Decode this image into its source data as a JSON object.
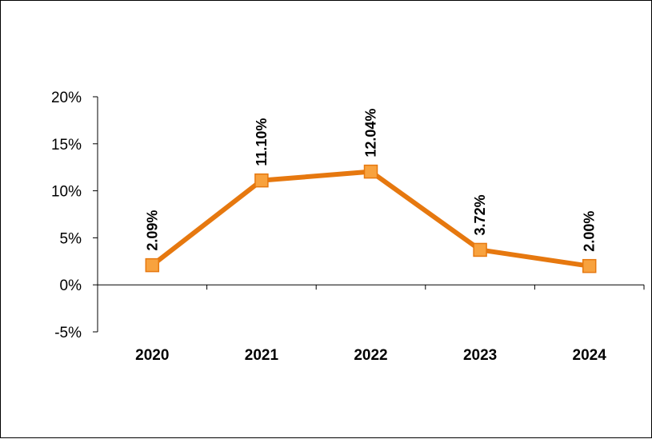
{
  "chart_data": {
    "type": "line",
    "categories": [
      "2020",
      "2021",
      "2022",
      "2023",
      "2024"
    ],
    "series": [
      {
        "values": [
          2.09,
          11.1,
          12.04,
          3.72,
          2.0
        ]
      }
    ],
    "data_labels": [
      "2.09%",
      "11.10%",
      "12.04%",
      "3.72%",
      "2.00%"
    ],
    "y_ticks": [
      -5,
      0,
      5,
      10,
      15,
      20
    ],
    "y_tick_labels": [
      "-5%",
      "0%",
      "5%",
      "10%",
      "15%",
      "20%"
    ],
    "ylim": [
      -5,
      20
    ],
    "grid": false,
    "legend": "none",
    "colors": {
      "line": "#E6780F",
      "marker_fill": "#F8A23E",
      "marker_stroke": "#E6780F",
      "axis": "#000000"
    }
  }
}
